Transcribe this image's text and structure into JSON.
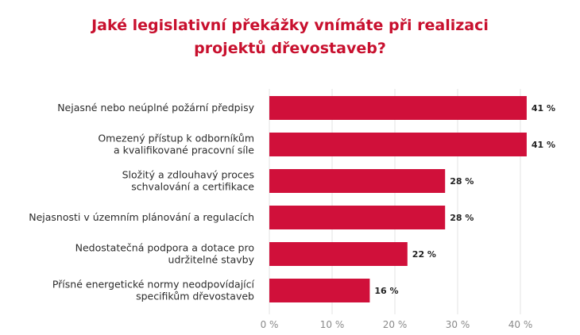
{
  "chart_data": {
    "type": "bar",
    "orientation": "horizontal",
    "title_lines": [
      "Jaké legislativní překážky vnímáte při realizaci",
      "projektů dřevostaveb?"
    ],
    "categories": [
      [
        "Nejasné nebo neúplné požární předpisy"
      ],
      [
        "Omezený přístup k odborníkům",
        "a kvalifikované pracovní síle"
      ],
      [
        "Složitý a zdlouhavý proces",
        "schvalování a certifikace"
      ],
      [
        "Nejasnosti v územním plánování a regulacích"
      ],
      [
        "Nedostatečná podpora a dotace pro",
        "udržitelné stavby"
      ],
      [
        "Přísné energetické normy neodpovídající",
        "specifikům dřevostaveb"
      ]
    ],
    "values": [
      41,
      41,
      28,
      28,
      22,
      16
    ],
    "value_labels": [
      "41 %",
      "41 %",
      "28 %",
      "28 %",
      "22 %",
      "16 %"
    ],
    "xlim": [
      0,
      42
    ],
    "xticks": [
      0,
      10,
      20,
      30,
      40
    ],
    "xtick_labels": [
      "0 %",
      "10 %",
      "20 %",
      "30 %",
      "40 %"
    ],
    "grid": true,
    "legend": "none",
    "colors": {
      "bar": "#d0103a",
      "title": "#c8102e",
      "grid": "#e3e3e3"
    }
  }
}
